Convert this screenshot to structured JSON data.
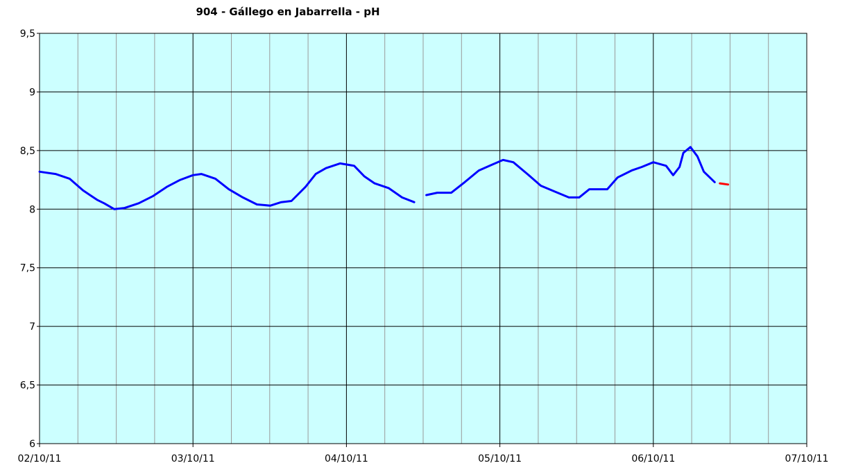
{
  "chart_data": {
    "type": "line",
    "title": "904 - Gállego en Jabarrella - pH",
    "x": [
      0,
      2.5,
      4.7,
      6.8,
      9.0,
      10.1,
      11.7,
      13.3,
      15.5,
      17.7,
      19.9,
      22.0,
      24,
      25.3,
      27.5,
      29.6,
      31.8,
      34.0,
      36.1,
      37.8,
      39.4,
      41.6,
      43.2,
      44.8,
      47.0,
      49.2,
      50.8,
      52.4,
      54.6,
      56.7,
      58.6,
      59.5,
      60.5,
      62.2,
      64.4,
      66.5,
      68.7,
      70.8,
      72.5,
      74.1,
      76.3,
      78.4,
      80.6,
      82.8,
      84.4,
      86.0,
      88.8,
      90.4,
      92.6,
      94.2,
      96,
      98.0,
      99.1,
      100.1,
      100.7,
      101.8,
      102.9,
      103.9,
      105.6,
      106.4,
      107.7
    ],
    "series": [
      {
        "color": "#0000ff",
        "values": [
          8.32,
          8.3,
          8.26,
          8.16,
          8.08,
          8.05,
          8.0,
          8.01,
          8.05,
          8.11,
          8.19,
          8.25,
          8.29,
          8.3,
          8.26,
          8.17,
          8.1,
          8.04,
          8.03,
          8.06,
          8.07,
          8.19,
          8.3,
          8.35,
          8.39,
          8.37,
          8.28,
          8.22,
          8.18,
          8.1,
          8.06,
          null,
          8.12,
          8.14,
          8.14,
          8.23,
          8.33,
          8.38,
          8.42,
          8.4,
          8.3,
          8.2,
          8.15,
          8.1,
          8.1,
          8.17,
          8.17,
          8.27,
          8.33,
          8.36,
          8.4,
          8.37,
          8.29,
          8.36,
          8.48,
          8.53,
          8.45,
          8.32,
          8.23,
          null,
          null
        ]
      },
      {
        "color": "#ff0000",
        "values": [
          null,
          null,
          null,
          null,
          null,
          null,
          null,
          null,
          null,
          null,
          null,
          null,
          null,
          null,
          null,
          null,
          null,
          null,
          null,
          null,
          null,
          null,
          null,
          null,
          null,
          null,
          null,
          null,
          null,
          null,
          null,
          null,
          null,
          null,
          null,
          null,
          null,
          null,
          null,
          null,
          null,
          null,
          null,
          null,
          null,
          null,
          null,
          null,
          null,
          null,
          null,
          null,
          null,
          null,
          null,
          null,
          null,
          null,
          null,
          8.22,
          8.21
        ]
      }
    ],
    "xlim": [
      0,
      120
    ],
    "xticks": [
      {
        "value": 0,
        "label": "02/10/11"
      },
      {
        "value": 24,
        "label": "03/10/11"
      },
      {
        "value": 48,
        "label": "04/10/11"
      },
      {
        "value": 72,
        "label": "05/10/11"
      },
      {
        "value": 96,
        "label": "06/10/11"
      },
      {
        "value": 120,
        "label": "07/10/11"
      }
    ],
    "xminor": [
      6,
      12,
      18,
      30,
      36,
      42,
      54,
      60,
      66,
      78,
      84,
      90,
      102,
      108,
      114
    ],
    "ylim": [
      6,
      9.5
    ],
    "yticks": [
      6,
      {
        "value": 6.5,
        "label": "6,5"
      },
      7,
      {
        "value": 7.5,
        "label": "7,5"
      },
      8,
      {
        "value": 8.5,
        "label": "8,5"
      },
      9,
      {
        "value": 9.5,
        "label": "9,5"
      }
    ],
    "grid": true,
    "background": "#ccffff"
  }
}
